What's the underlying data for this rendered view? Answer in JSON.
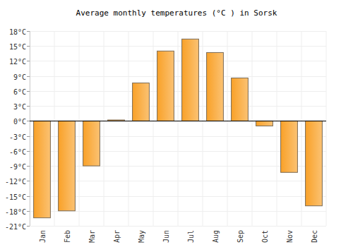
{
  "chart_data": {
    "type": "bar",
    "title": "Average monthly temperatures (°C ) in Sorsk",
    "categories": [
      "Jan",
      "Feb",
      "Mar",
      "Apr",
      "May",
      "Jun",
      "Jul",
      "Aug",
      "Sep",
      "Oct",
      "Nov",
      "Dec"
    ],
    "values": [
      -19.4,
      -18,
      -9,
      0.2,
      7.6,
      14,
      16.4,
      13.7,
      8.6,
      -1,
      -10.3,
      -17
    ],
    "color": "#f9a128",
    "ylim": [
      -21,
      18
    ],
    "yticks": [
      {
        "value": -21,
        "label": "-21°C"
      },
      {
        "value": -18,
        "label": "-18°C"
      },
      {
        "value": -15,
        "label": "-15°C"
      },
      {
        "value": -12,
        "label": "-12°C"
      },
      {
        "value": -9,
        "label": "-9°C"
      },
      {
        "value": -6,
        "label": "-6°C"
      },
      {
        "value": -3,
        "label": "-3°C"
      },
      {
        "value": 0,
        "label": "0°C"
      },
      {
        "value": 3,
        "label": "3°C"
      },
      {
        "value": 6,
        "label": "6°C"
      },
      {
        "value": 9,
        "label": "9°C"
      },
      {
        "value": 12,
        "label": "12°C"
      },
      {
        "value": 15,
        "label": "15°C"
      },
      {
        "value": 18,
        "label": "18°C"
      }
    ],
    "grid": true
  }
}
